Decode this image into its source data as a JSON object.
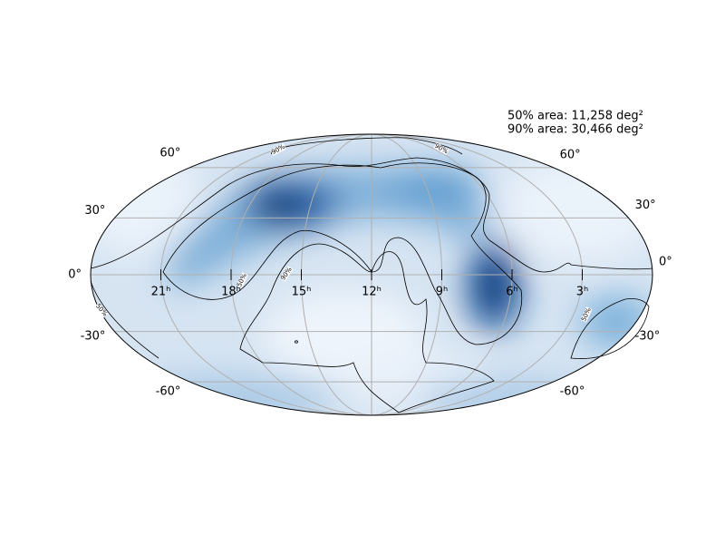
{
  "annotations": [
    "50% area: 11,258 deg²",
    "90% area: 30,466 deg²"
  ],
  "declination_ticks": [
    {
      "value": 60,
      "label": "60°"
    },
    {
      "value": 30,
      "label": "30°"
    },
    {
      "value": 0,
      "label": "0°"
    },
    {
      "value": -30,
      "label": "-30°"
    },
    {
      "value": -60,
      "label": "-60°"
    }
  ],
  "ra_ticks": [
    {
      "value": 21,
      "label": "21ʰ"
    },
    {
      "value": 18,
      "label": "18ʰ"
    },
    {
      "value": 15,
      "label": "15ʰ"
    },
    {
      "value": 12,
      "label": "12ʰ"
    },
    {
      "value": 9,
      "label": "9ʰ"
    },
    {
      "value": 6,
      "label": "6ʰ"
    },
    {
      "value": 3,
      "label": "3ʰ"
    }
  ],
  "contour_labels": [
    "90%",
    "90%",
    "90%",
    "50%",
    "50%",
    "50%"
  ]
}
